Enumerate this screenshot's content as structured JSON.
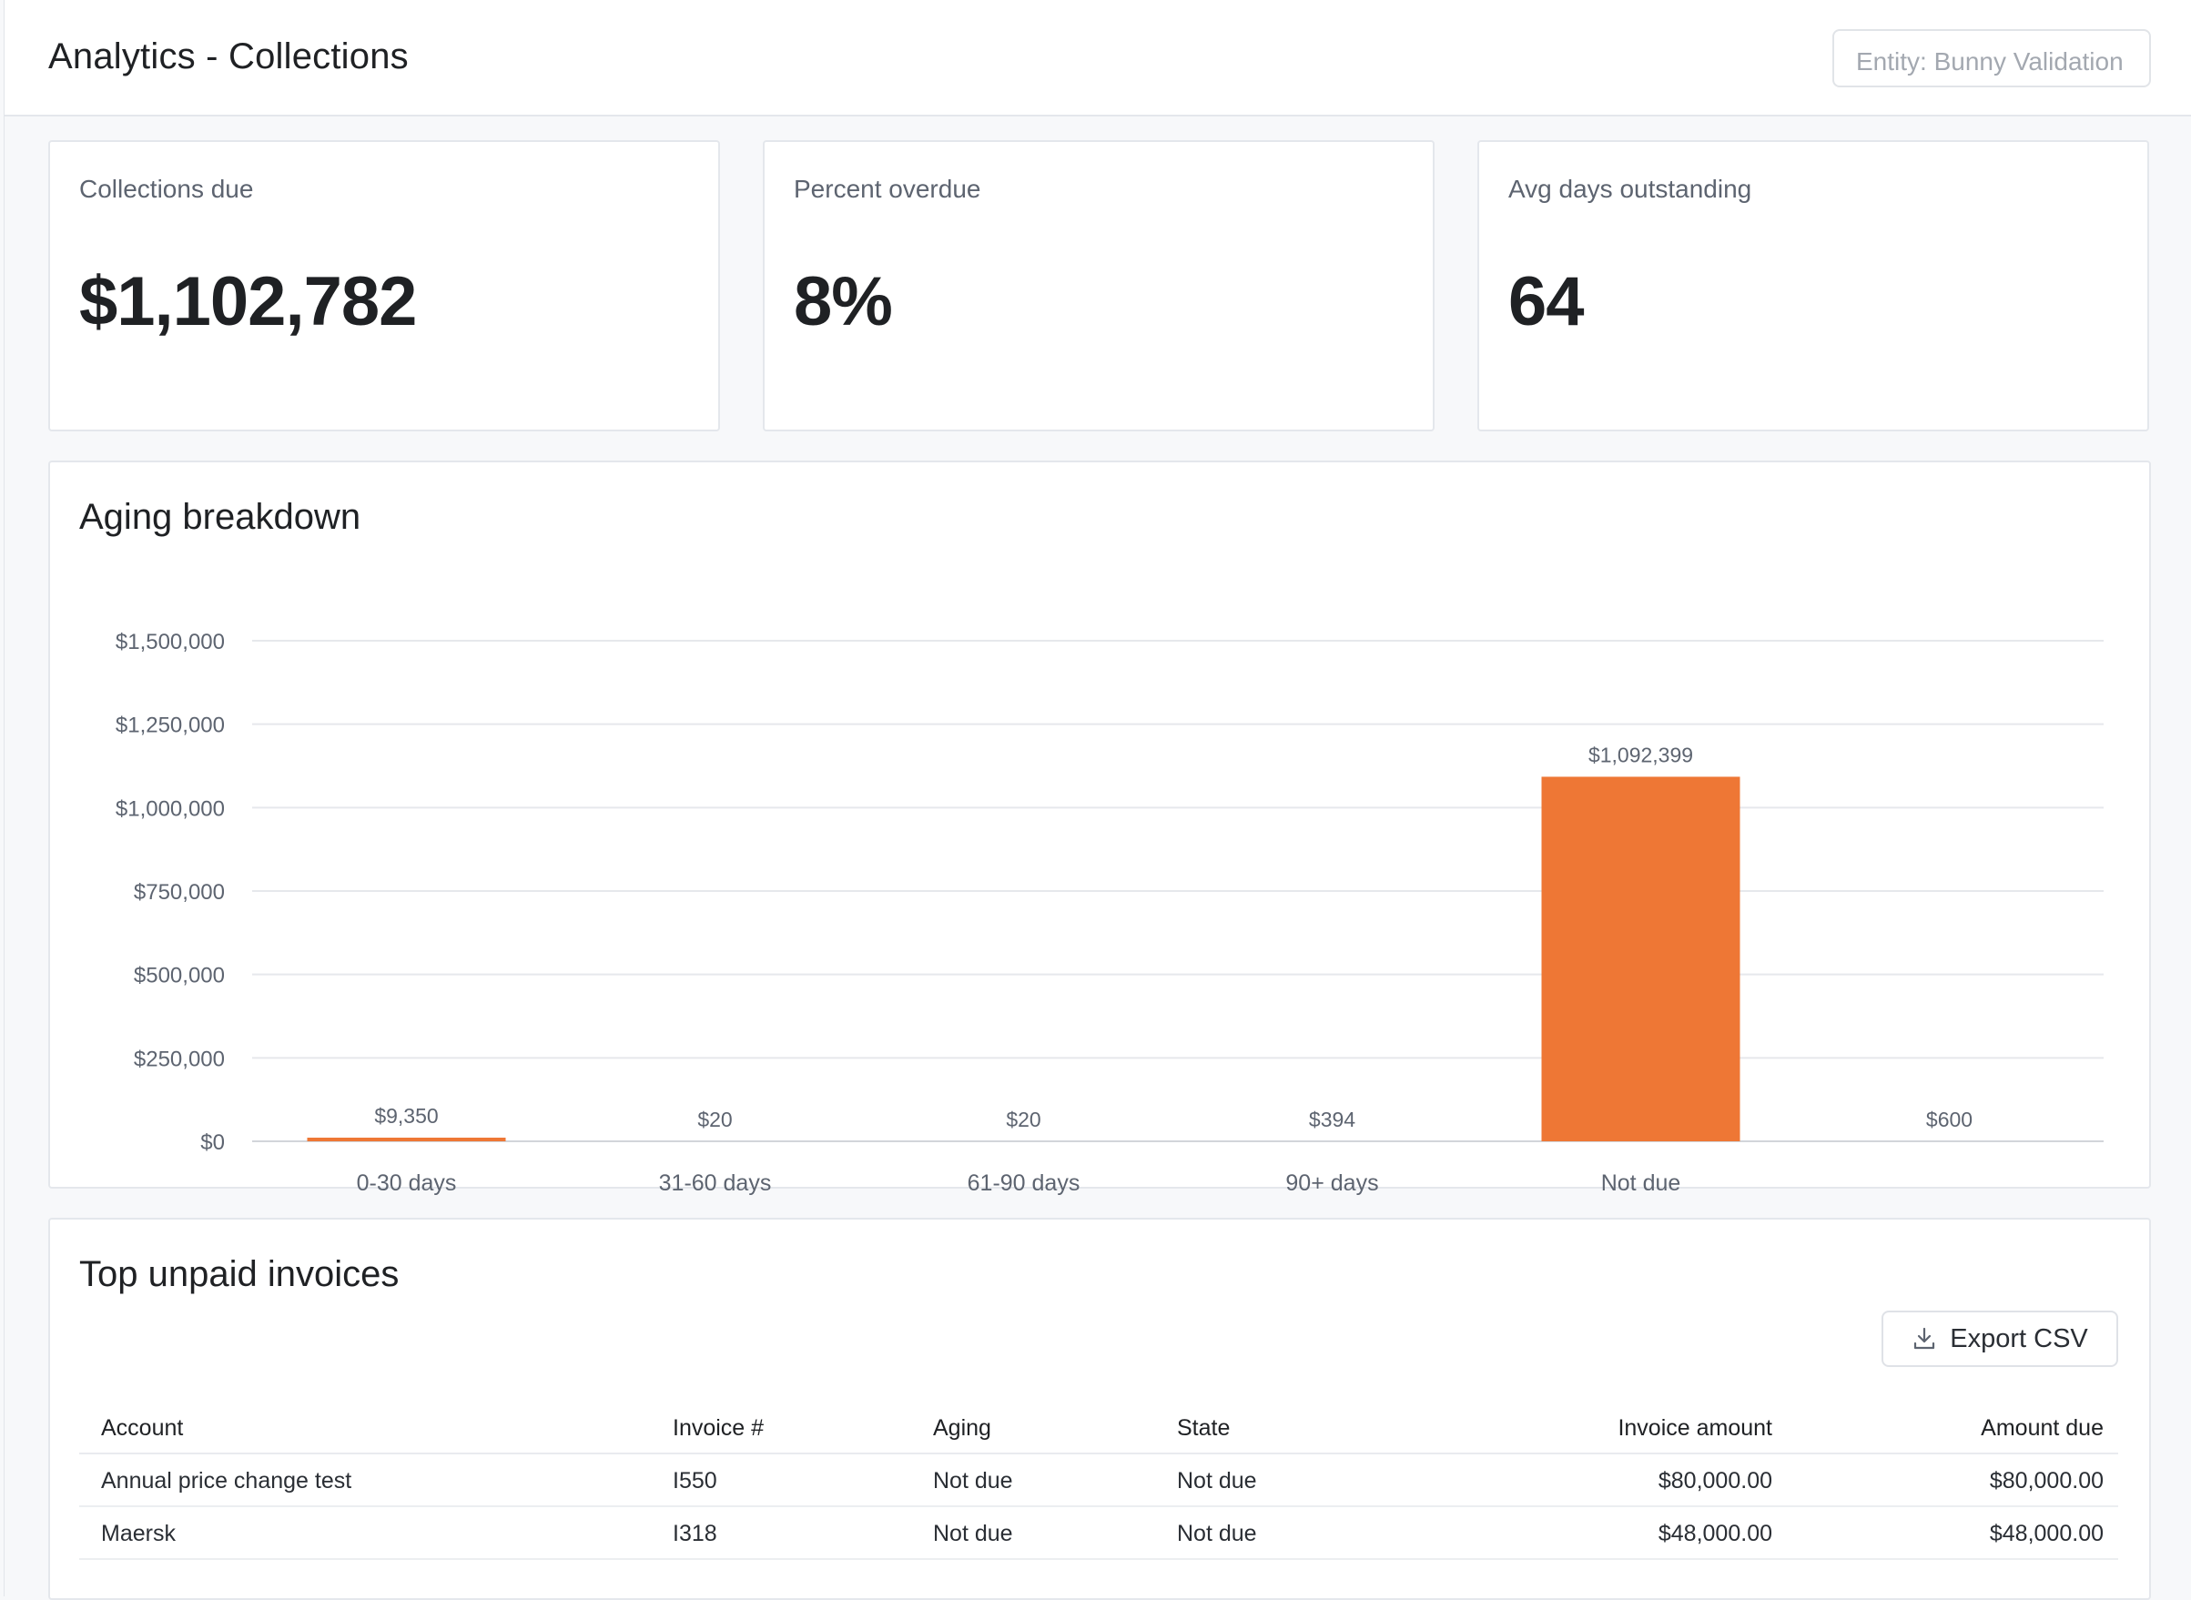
{
  "header": {
    "title": "Analytics - Collections",
    "entity_select": "Entity: Bunny Validation"
  },
  "kpis": [
    {
      "label": "Collections due",
      "value": "$1,102,782"
    },
    {
      "label": "Percent overdue",
      "value": "8%"
    },
    {
      "label": "Avg days outstanding",
      "value": "64"
    }
  ],
  "aging": {
    "title": "Aging breakdown"
  },
  "chart_data": {
    "type": "bar",
    "title": "Aging breakdown",
    "categories": [
      "0-30 days",
      "31-60 days",
      "61-90 days",
      "90+ days",
      "Not due",
      ""
    ],
    "values": [
      9350,
      20,
      20,
      394,
      1092399,
      600
    ],
    "value_labels": [
      "$9,350",
      "$20",
      "$20",
      "$394",
      "$1,092,399",
      "$600"
    ],
    "ylim": [
      0,
      1500000
    ],
    "yticks": [
      0,
      250000,
      500000,
      750000,
      1000000,
      1250000,
      1500000
    ],
    "ytick_labels": [
      "$0",
      "$250,000",
      "$500,000",
      "$750,000",
      "$1,000,000",
      "$1,250,000",
      "$1,500,000"
    ],
    "grid": true,
    "bar_color": "#ee7735"
  },
  "invoices": {
    "title": "Top unpaid invoices",
    "export_label": "Export CSV",
    "columns": [
      "Account",
      "Invoice #",
      "Aging",
      "State",
      "Invoice amount",
      "Amount due"
    ],
    "rows": [
      {
        "account": "Annual price change test",
        "invoice": "I550",
        "aging": "Not due",
        "state": "Not due",
        "invoice_amount": "$80,000.00",
        "amount_due": "$80,000.00"
      },
      {
        "account": "Maersk",
        "invoice": "I318",
        "aging": "Not due",
        "state": "Not due",
        "invoice_amount": "$48,000.00",
        "amount_due": "$48,000.00"
      }
    ]
  },
  "colors": {
    "accent": "#e5622d",
    "bar": "#ee7735"
  }
}
